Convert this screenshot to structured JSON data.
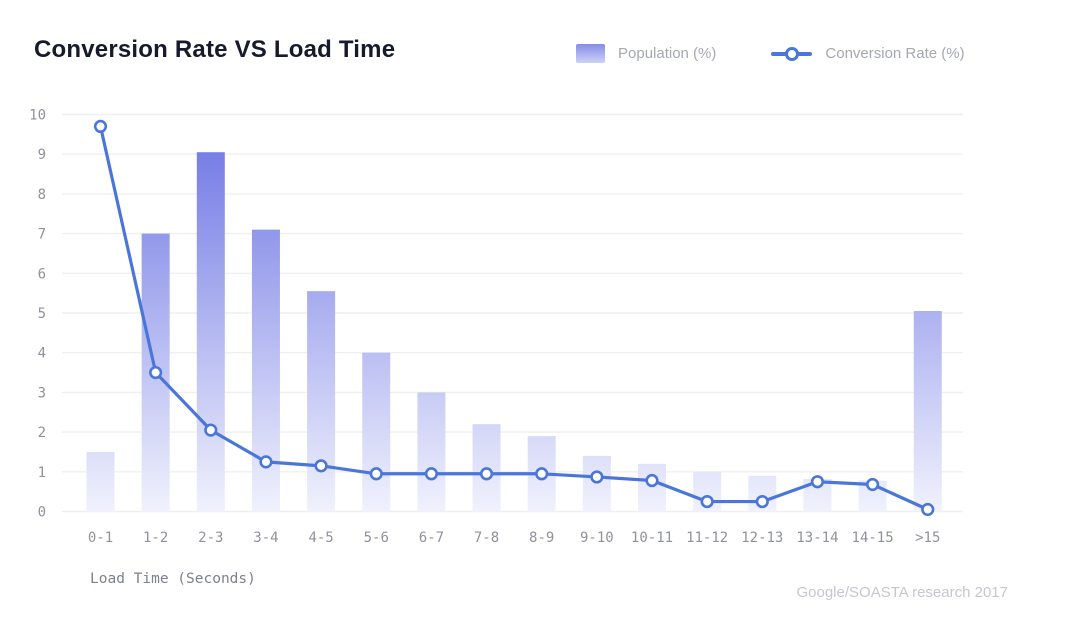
{
  "chart_data": {
    "type": "bar+line",
    "title": "Conversion Rate VS Load Time",
    "xlabel": "Load Time (Seconds)",
    "ylabel": "",
    "annotation": "Google/SOASTA research 2017",
    "categories": [
      "0-1",
      "1-2",
      "2-3",
      "3-4",
      "4-5",
      "5-6",
      "6-7",
      "7-8",
      "8-9",
      "9-10",
      "10-11",
      "11-12",
      "12-13",
      "13-14",
      "14-15",
      ">15"
    ],
    "series": [
      {
        "name": "Population (%)",
        "type": "bar",
        "values": [
          1.5,
          7.0,
          9.05,
          7.1,
          5.55,
          4.0,
          3.0,
          2.2,
          1.9,
          1.4,
          1.2,
          1.0,
          0.9,
          0.82,
          0.78,
          5.05
        ]
      },
      {
        "name": "Conversion Rate (%)",
        "type": "line",
        "values": [
          9.7,
          3.5,
          2.05,
          1.25,
          1.15,
          0.95,
          0.95,
          0.95,
          0.95,
          0.87,
          0.78,
          0.25,
          0.25,
          0.75,
          0.68,
          0.05
        ]
      }
    ],
    "ylim": [
      0,
      10
    ],
    "yticks": [
      0,
      1,
      2,
      3,
      4,
      5,
      6,
      7,
      8,
      9,
      10
    ],
    "grid": true,
    "legend_position": "top-right"
  },
  "colors": {
    "line": "#4a76da",
    "bar_gradient_top": "#6a72e3",
    "bar_gradient_bottom": "#f1f2fd",
    "gridline": "#efeff3",
    "title_text": "#171a2b",
    "tick_text": "#8f929c",
    "legend_text": "#a5a8b2",
    "source_text": "#c5c7cd"
  }
}
